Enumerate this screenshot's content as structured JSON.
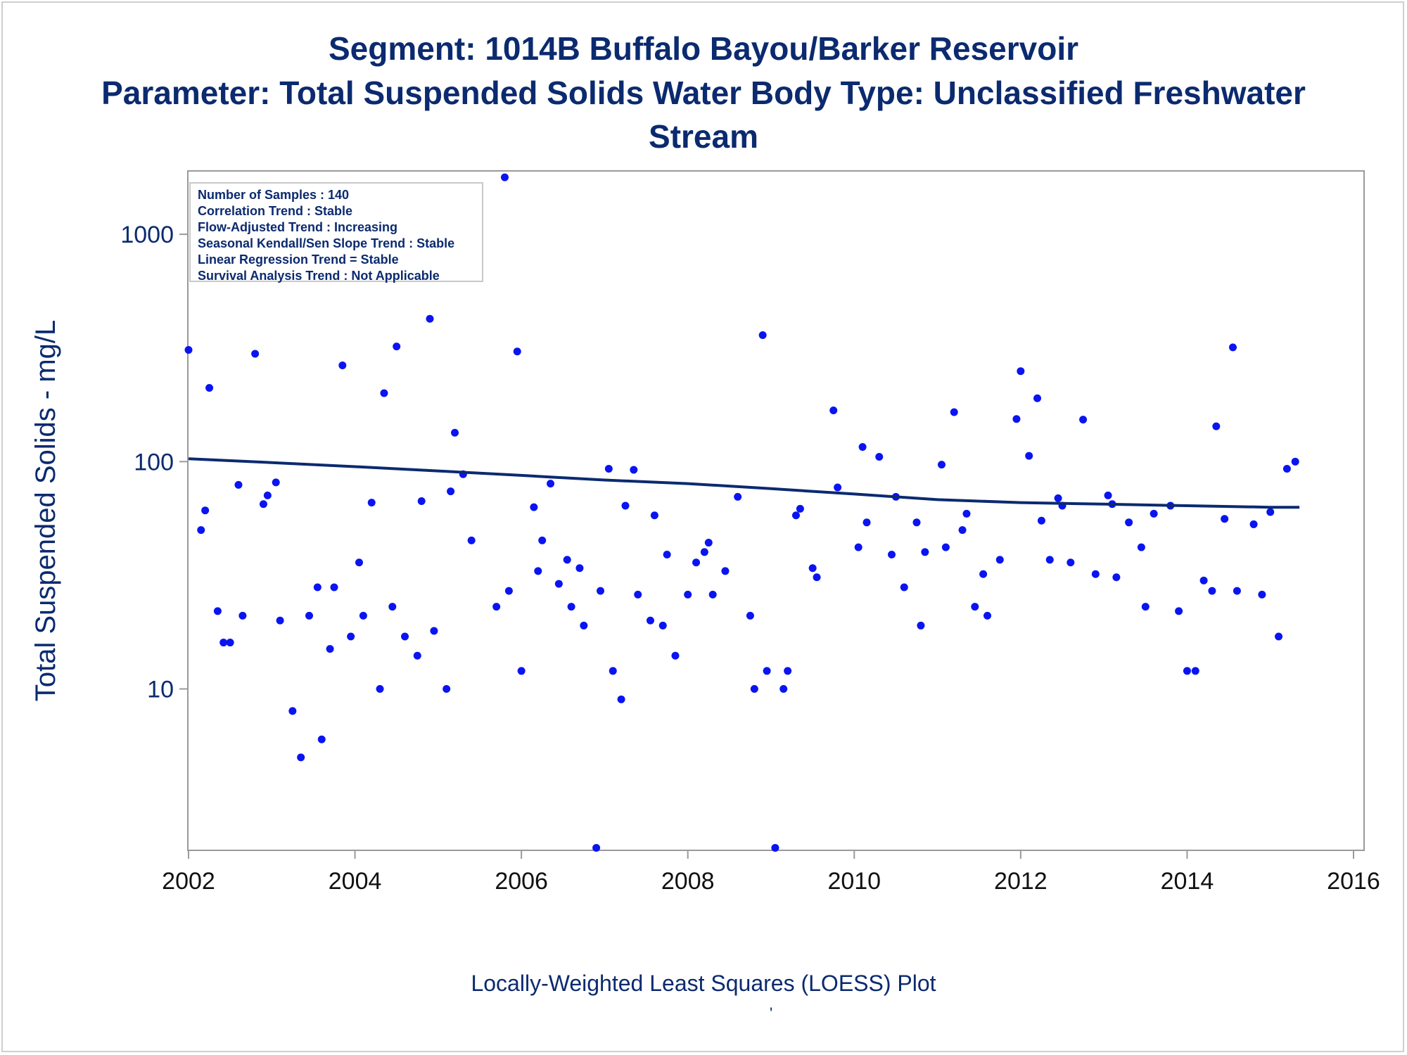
{
  "titles": {
    "line1": "Segment: 1014B  Buffalo Bayou/Barker Reservoir",
    "line2": "Parameter: Total Suspended Solids   Water Body Type: Unclassified Freshwater",
    "line3": "Stream"
  },
  "stats_box": [
    "Number of Samples : 140",
    "Correlation Trend : Stable",
    "Flow-Adjusted Trend : Increasing",
    "Seasonal Kendall/Sen Slope Trend : Stable",
    "Linear Regression Trend = Stable",
    "Survival Analysis Trend : Not Applicable"
  ],
  "footnote": "Locally-Weighted Least Squares (LOESS) Plot",
  "footnote_mark": "'",
  "colors": {
    "text": "#0b2a6f",
    "points": "#0a14f0",
    "loess": "#0b2a6f",
    "axis": "#9a9a9a"
  },
  "chart_data": {
    "type": "scatter",
    "title": "Segment: 1014B  Buffalo Bayou/Barker Reservoir",
    "xlabel": "",
    "ylabel": "Total Suspended Solids - mg/L",
    "yscale": "log",
    "xlim": [
      2002,
      2016
    ],
    "ylim": [
      1.95,
      1900
    ],
    "xticks": [
      "2002",
      "2004",
      "2006",
      "2008",
      "2010",
      "2012",
      "2014",
      "2016"
    ],
    "yticks": [
      "10",
      "100",
      "1000"
    ],
    "grid": false,
    "x": [
      2002.0,
      2002.15,
      2002.2,
      2002.25,
      2002.35,
      2002.42,
      2002.5,
      2002.6,
      2002.65,
      2002.8,
      2002.9,
      2002.95,
      2003.05,
      2003.1,
      2003.25,
      2003.35,
      2003.45,
      2003.55,
      2003.6,
      2003.7,
      2003.75,
      2003.85,
      2003.95,
      2004.05,
      2004.1,
      2004.2,
      2004.3,
      2004.35,
      2004.45,
      2004.5,
      2004.6,
      2004.75,
      2004.8,
      2004.9,
      2004.95,
      2005.1,
      2005.15,
      2005.2,
      2005.3,
      2005.4,
      2005.7,
      2005.8,
      2005.85,
      2005.95,
      2006.0,
      2006.15,
      2006.2,
      2006.25,
      2006.35,
      2006.45,
      2006.55,
      2006.6,
      2006.7,
      2006.75,
      2006.9,
      2006.95,
      2007.05,
      2007.1,
      2007.2,
      2007.25,
      2007.35,
      2007.4,
      2007.55,
      2007.6,
      2007.7,
      2007.75,
      2007.85,
      2008.0,
      2008.1,
      2008.2,
      2008.25,
      2008.3,
      2008.45,
      2008.6,
      2008.75,
      2008.8,
      2008.9,
      2008.95,
      2009.05,
      2009.15,
      2009.2,
      2009.3,
      2009.35,
      2009.5,
      2009.55,
      2009.75,
      2009.8,
      2010.05,
      2010.1,
      2010.15,
      2010.3,
      2010.45,
      2010.5,
      2010.6,
      2010.75,
      2010.8,
      2010.85,
      2011.05,
      2011.1,
      2011.2,
      2011.3,
      2011.35,
      2011.45,
      2011.55,
      2011.6,
      2011.75,
      2011.95,
      2012.0,
      2012.1,
      2012.2,
      2012.25,
      2012.35,
      2012.45,
      2012.5,
      2012.6,
      2012.75,
      2012.9,
      2013.05,
      2013.1,
      2013.15,
      2013.3,
      2013.45,
      2013.5,
      2013.6,
      2013.8,
      2013.9,
      2014.0,
      2014.1,
      2014.2,
      2014.3,
      2014.35,
      2014.45,
      2014.55,
      2014.6,
      2014.8,
      2014.9,
      2015.0,
      2015.1,
      2015.2,
      2015.3
    ],
    "series": [
      {
        "type": "scatter",
        "values": [
          310,
          50,
          61,
          211,
          22,
          16,
          16,
          79,
          21,
          298,
          65,
          71,
          81,
          20,
          8,
          5,
          21,
          28,
          6,
          15,
          28,
          265,
          17,
          36,
          21,
          66,
          10,
          200,
          23,
          321,
          17,
          14,
          67,
          425,
          18,
          10,
          74,
          134,
          88,
          45,
          23,
          1780,
          27,
          305,
          12,
          63,
          33,
          45,
          80,
          29,
          37,
          23,
          34,
          19,
          2,
          27,
          93,
          12,
          9,
          64,
          92,
          26,
          20,
          58,
          19,
          39,
          14,
          26,
          36,
          40,
          44,
          26,
          33,
          70,
          21,
          10,
          360,
          12,
          2,
          10,
          12,
          58,
          62,
          34,
          31,
          168,
          77,
          42,
          116,
          54,
          105,
          39,
          70,
          28,
          54,
          19,
          40,
          97,
          42,
          165,
          50,
          59,
          23,
          32,
          21,
          37,
          154,
          250,
          106,
          190,
          55,
          37,
          69,
          64,
          36,
          153,
          32,
          71,
          65,
          31,
          54,
          42,
          23,
          59,
          64,
          22,
          12,
          12,
          30,
          27,
          143,
          56,
          318,
          27,
          53,
          26,
          60,
          17,
          93,
          100
        ]
      },
      {
        "type": "line",
        "x": [
          2002.0,
          2003.0,
          2004.0,
          2005.0,
          2006.0,
          2007.0,
          2008.0,
          2009.0,
          2010.0,
          2011.0,
          2012.0,
          2013.0,
          2014.0,
          2015.0,
          2015.35
        ],
        "values": [
          103,
          99,
          95,
          91,
          87,
          83,
          80,
          76,
          72,
          68,
          66,
          65,
          64,
          63,
          63
        ]
      }
    ]
  }
}
